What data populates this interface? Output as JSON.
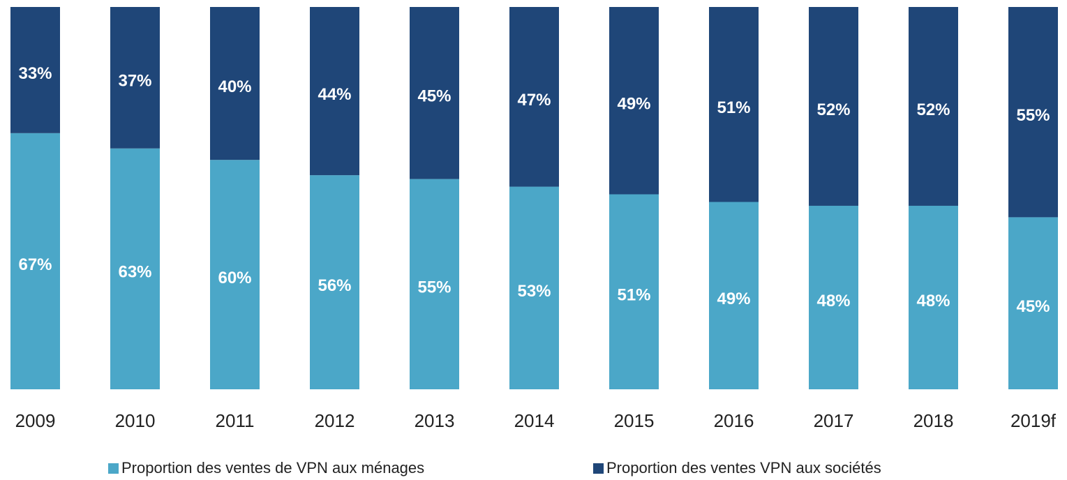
{
  "chart_data": {
    "type": "stacked_bar",
    "categories": [
      "2009",
      "2010",
      "2011",
      "2012",
      "2013",
      "2014",
      "2015",
      "2016",
      "2017",
      "2018",
      "2019f"
    ],
    "series": [
      {
        "name": "Proportion des ventes de VPN aux ménages",
        "color": "#4ba7c8",
        "values": [
          67,
          63,
          60,
          56,
          55,
          53,
          51,
          49,
          48,
          48,
          45
        ],
        "value_labels": [
          "67%",
          "63%",
          "60%",
          "56%",
          "55%",
          "53%",
          "51%",
          "49%",
          "48%",
          "48%",
          "45%"
        ]
      },
      {
        "name": "Proportion des ventes VPN aux sociétés",
        "color": "#1f4678",
        "values": [
          33,
          37,
          40,
          44,
          45,
          47,
          49,
          51,
          52,
          52,
          55
        ],
        "value_labels": [
          "33%",
          "37%",
          "40%",
          "44%",
          "45%",
          "47%",
          "49%",
          "51%",
          "52%",
          "52%",
          "55%"
        ]
      }
    ]
  }
}
